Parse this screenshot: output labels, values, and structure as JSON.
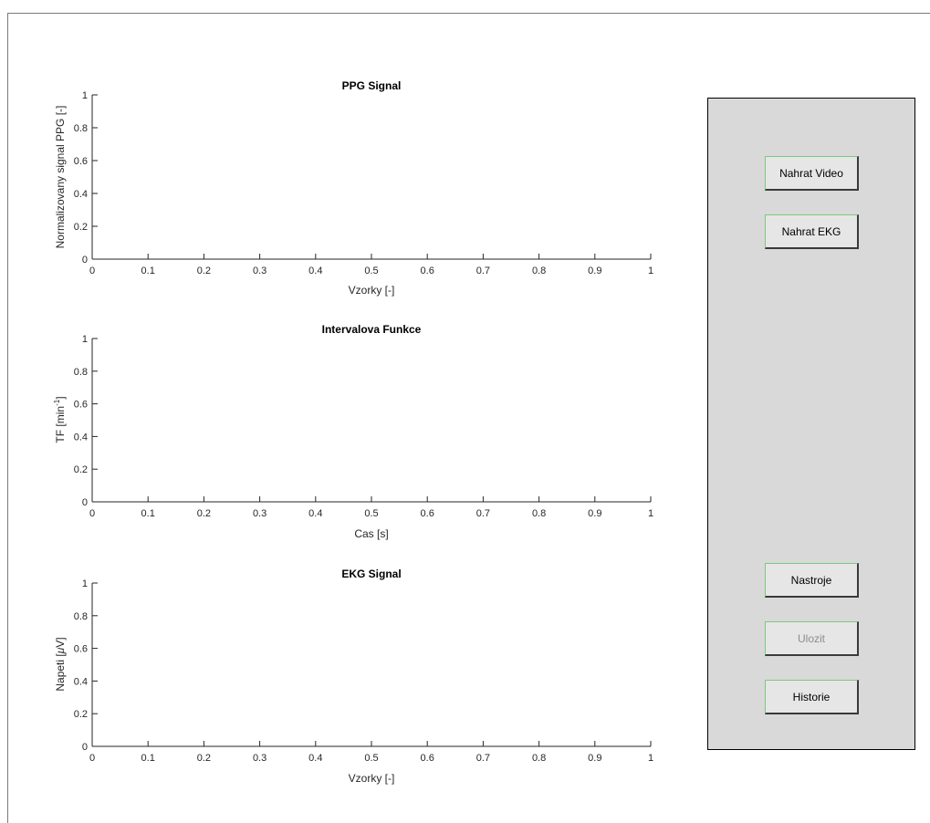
{
  "plots": [
    {
      "id": "ppg",
      "title": "PPG Signal",
      "xlabel": "Vzorky [-]",
      "ylabel": "Normalizovany signal PPG [-]",
      "xticks": [
        "0",
        "0.1",
        "0.2",
        "0.3",
        "0.4",
        "0.5",
        "0.6",
        "0.7",
        "0.8",
        "0.9",
        "1"
      ],
      "yticks": [
        "0",
        "0.2",
        "0.4",
        "0.6",
        "0.8",
        "1"
      ]
    },
    {
      "id": "interval",
      "title": "Intervalova Funkce",
      "xlabel": "Cas [s]",
      "ylabel_main": "TF [min",
      "ylabel_sup": "-1",
      "ylabel_end": "]",
      "xticks": [
        "0",
        "0.1",
        "0.2",
        "0.3",
        "0.4",
        "0.5",
        "0.6",
        "0.7",
        "0.8",
        "0.9",
        "1"
      ],
      "yticks": [
        "0",
        "0.2",
        "0.4",
        "0.6",
        "0.8",
        "1"
      ]
    },
    {
      "id": "ekg",
      "title": "EKG Signal",
      "xlabel": "Vzorky [-]",
      "ylabel_main": "Napeti [",
      "ylabel_mu": "μ",
      "ylabel_end": "V]",
      "xticks": [
        "0",
        "0.1",
        "0.2",
        "0.3",
        "0.4",
        "0.5",
        "0.6",
        "0.7",
        "0.8",
        "0.9",
        "1"
      ],
      "yticks": [
        "0",
        "0.2",
        "0.4",
        "0.6",
        "0.8",
        "1"
      ]
    }
  ],
  "panel": {
    "buttons": [
      {
        "id": "nahrat-video",
        "label": "Nahrat Video",
        "enabled": true
      },
      {
        "id": "nahrat-ekg",
        "label": "Nahrat EKG",
        "enabled": true
      },
      {
        "id": "nastroje",
        "label": "Nastroje",
        "enabled": true
      },
      {
        "id": "ulozit",
        "label": "Ulozit",
        "enabled": false
      },
      {
        "id": "historie",
        "label": "Historie",
        "enabled": true
      }
    ]
  }
}
